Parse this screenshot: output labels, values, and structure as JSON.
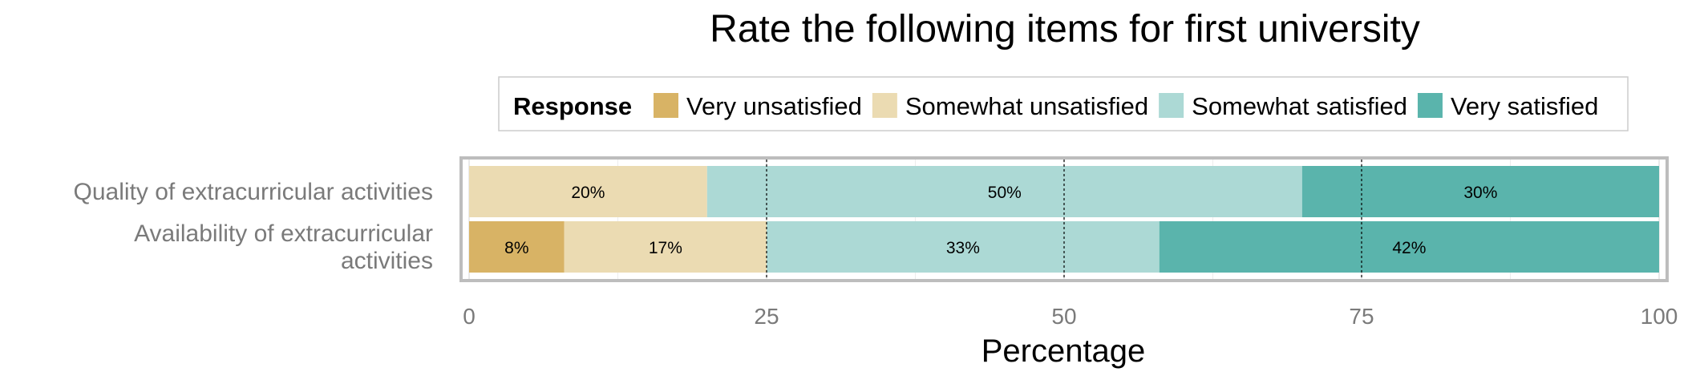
{
  "colors": {
    "Very unsatisfied": "#d8b365",
    "Somewhat unsatisfied": "#ebdbb2",
    "Somewhat satisfied": "#acd9d5",
    "Very satisfied": "#5ab4ac"
  },
  "chart_data": {
    "type": "bar",
    "orientation": "horizontal",
    "stacked": true,
    "title": "Rate the following items for first university",
    "xlabel": "Percentage",
    "ylabel": "",
    "xlim": [
      0,
      100
    ],
    "xticks": [
      0,
      25,
      50,
      75,
      100
    ],
    "grid": true,
    "legend_position": "top",
    "legend_title": "Response",
    "categories": [
      "Quality of extracurricular activities",
      "Availability of extracurricular activities"
    ],
    "category_lines": [
      [
        "Quality of extracurricular activities"
      ],
      [
        "Availability of extracurricular",
        "activities"
      ]
    ],
    "series": [
      {
        "name": "Very unsatisfied",
        "values": [
          0,
          8
        ],
        "labels": [
          "",
          "8%"
        ]
      },
      {
        "name": "Somewhat unsatisfied",
        "values": [
          20,
          17
        ],
        "labels": [
          "20%",
          "17%"
        ]
      },
      {
        "name": "Somewhat satisfied",
        "values": [
          50,
          33
        ],
        "labels": [
          "50%",
          "33%"
        ]
      },
      {
        "name": "Very satisfied",
        "values": [
          30,
          42
        ],
        "labels": [
          "30%",
          "42%"
        ]
      }
    ]
  }
}
